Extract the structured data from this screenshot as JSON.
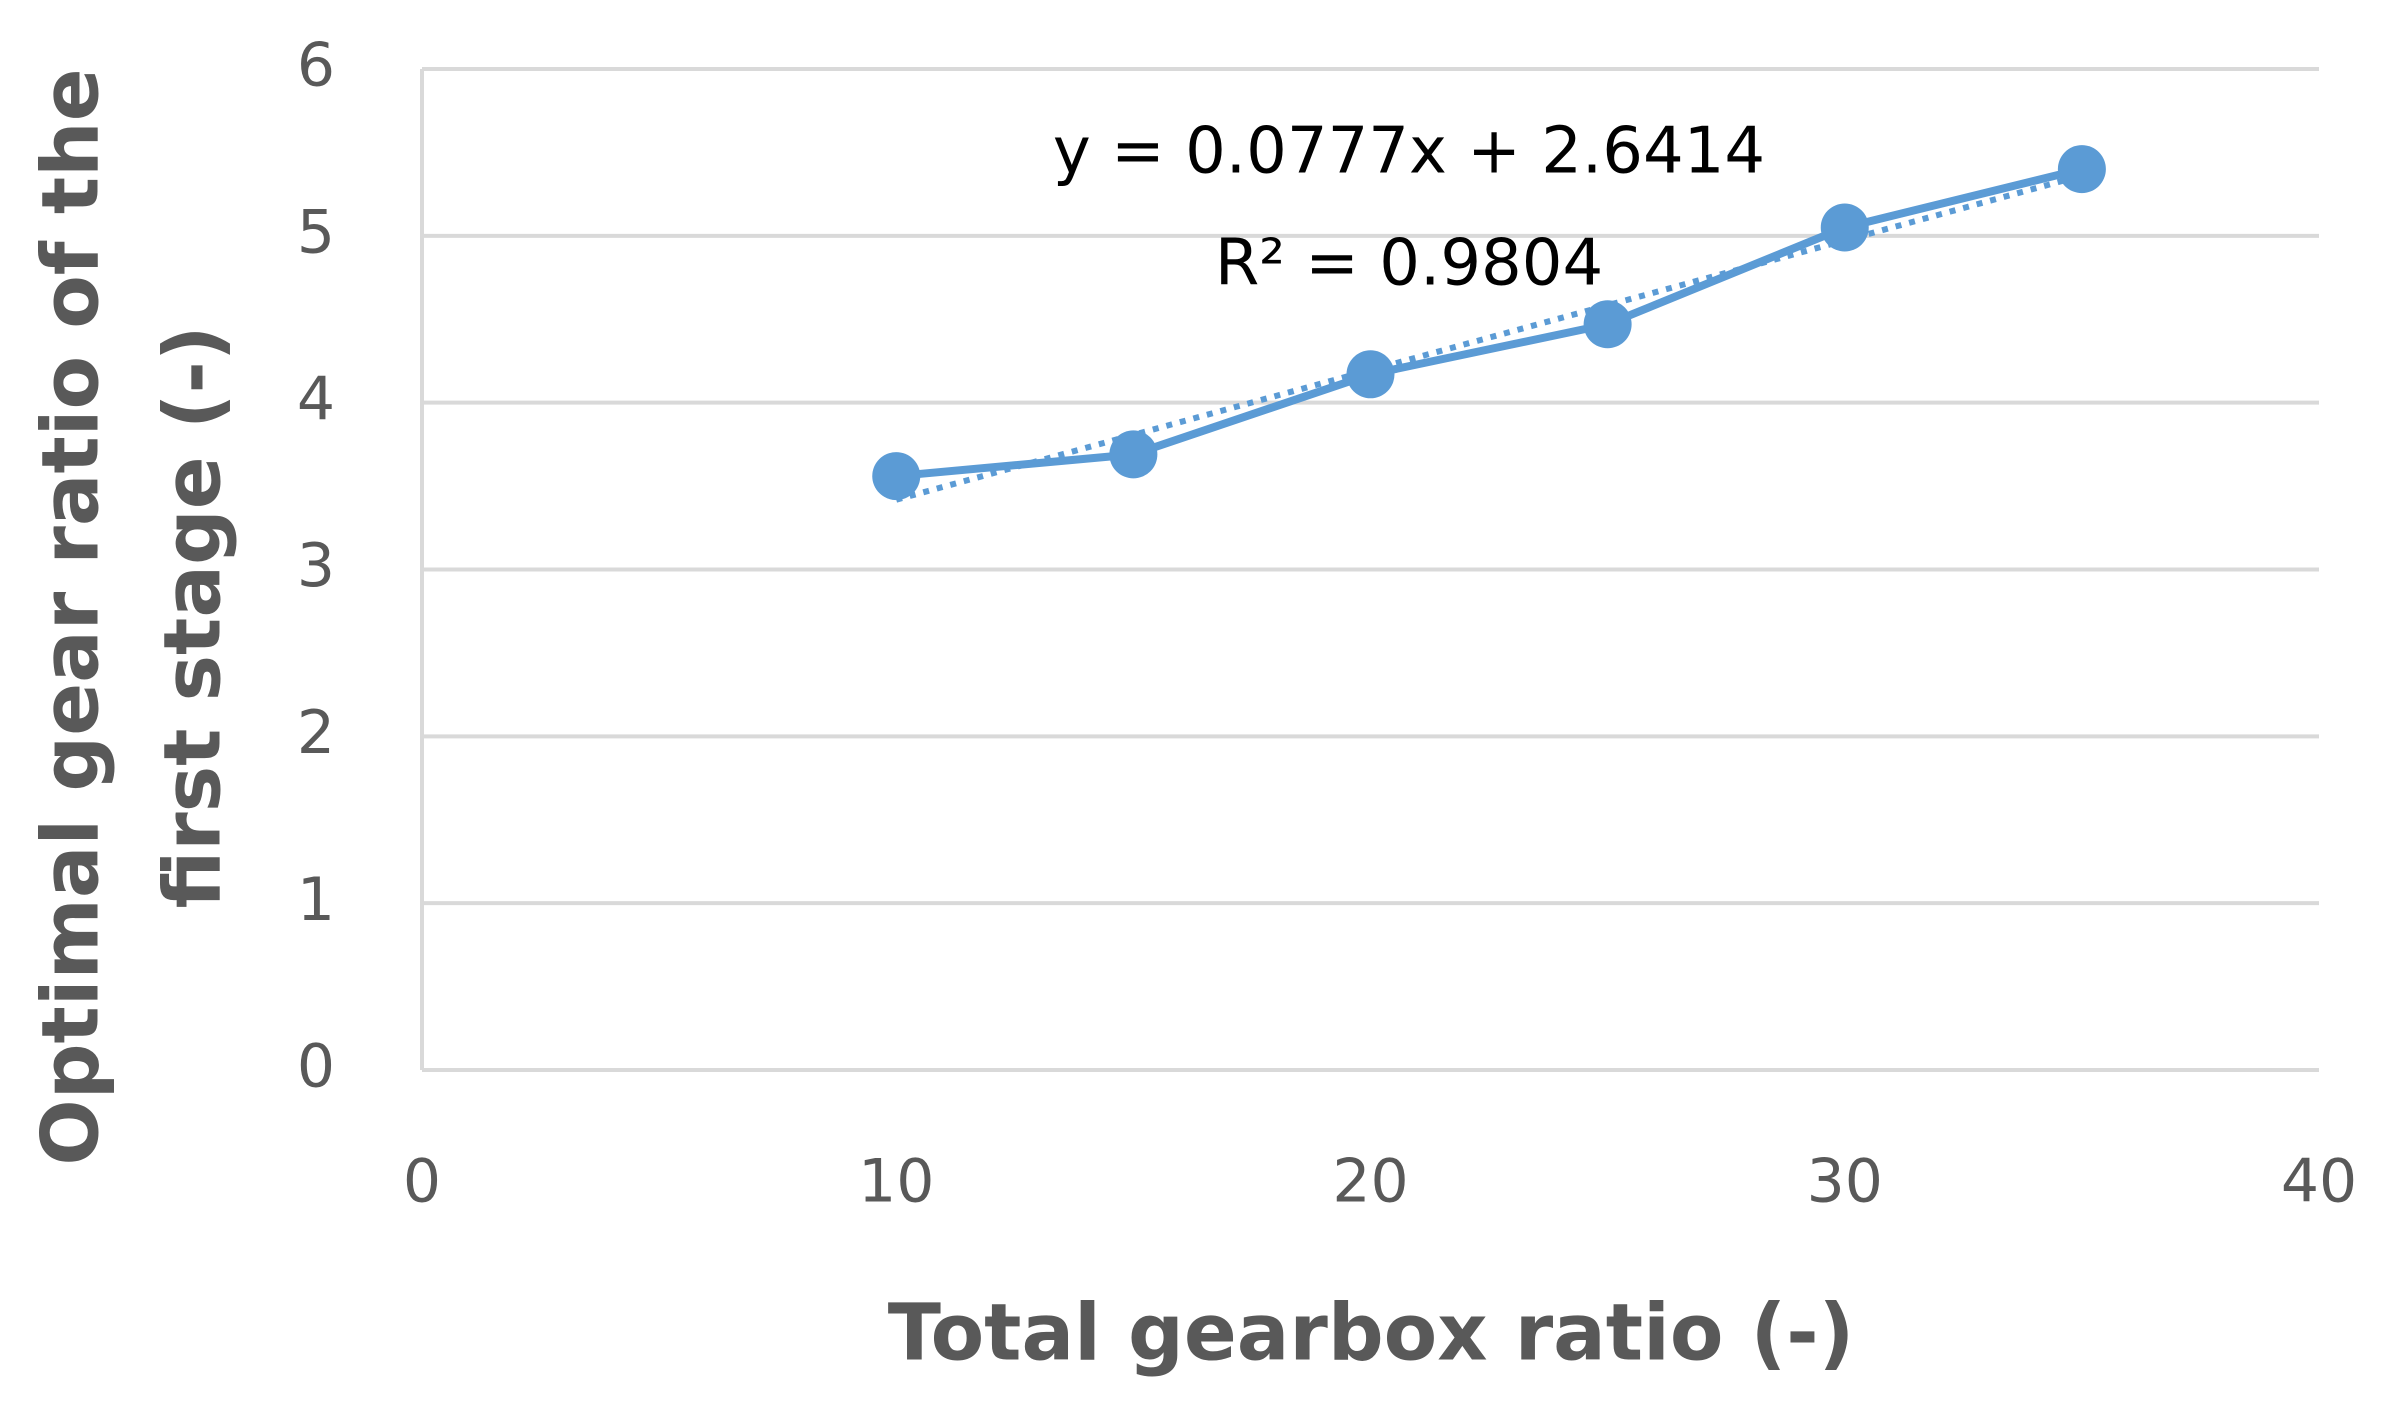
{
  "chart_data": {
    "type": "line",
    "xlabel": "Total gearbox ratio (-)",
    "ylabel": [
      "Optimal gear ratio of the",
      "first stage (-)"
    ],
    "x": [
      10,
      15,
      20,
      25,
      30,
      35
    ],
    "series": [
      {
        "color": "#5b9bd5",
        "values": [
          3.56,
          3.69,
          4.17,
          4.47,
          5.05,
          5.4
        ]
      }
    ],
    "trendline": {
      "slope": 0.0777,
      "intercept": 2.6414,
      "equation": "y = 0.0777x + 2.6414",
      "r2": "R² = 0.9804"
    },
    "xlim": [
      0,
      40
    ],
    "xticks": [
      0,
      10,
      20,
      30,
      40
    ],
    "ylim": [
      0,
      6
    ],
    "yticks": [
      0,
      1,
      2,
      3,
      4,
      5,
      6
    ],
    "grid": true
  }
}
